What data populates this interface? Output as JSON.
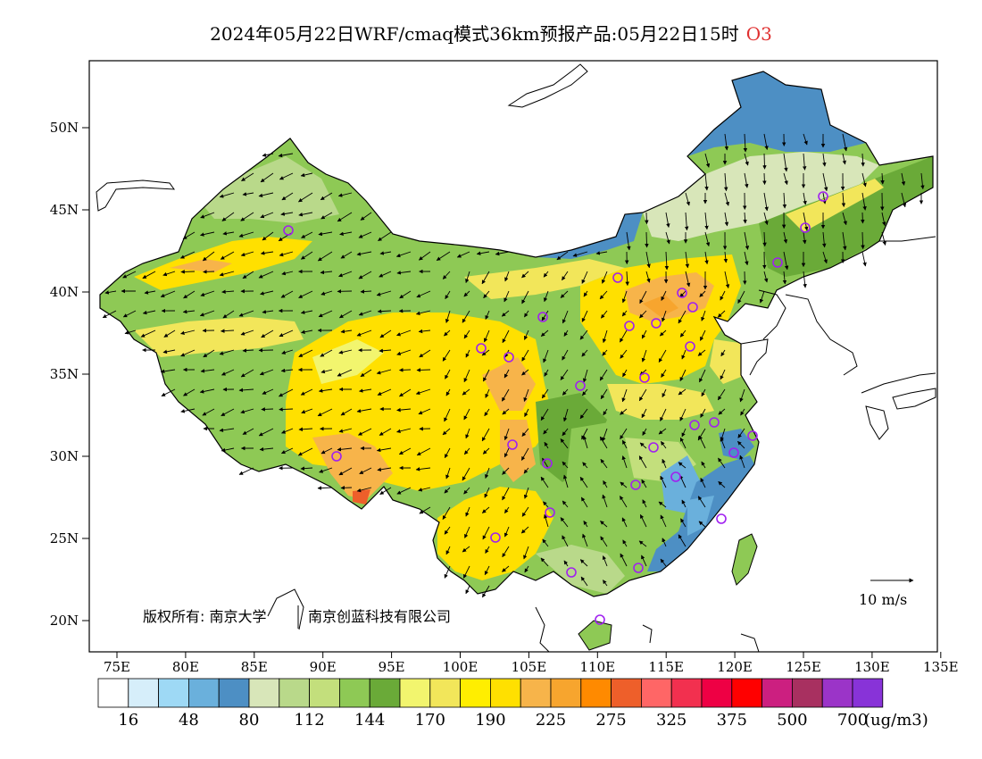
{
  "title": {
    "main": "2024年05月22日WRF/cmaq模式36km预报产品:05月22日15时",
    "species": "O3",
    "species_color": "#e03030"
  },
  "axes": {
    "lat_labels": [
      "50N",
      "45N",
      "40N",
      "35N",
      "30N",
      "25N",
      "20N"
    ],
    "lon_labels": [
      "75E",
      "80E",
      "85E",
      "90E",
      "95E",
      "100E",
      "105E",
      "110E",
      "115E",
      "120E",
      "125E",
      "130E",
      "135E"
    ]
  },
  "copyright": {
    "left": "版权所有: 南京大学",
    "right": "南京创蓝科技有限公司"
  },
  "wind_scale": {
    "label": "10 m/s"
  },
  "colorbar": {
    "colors": [
      "#ffffff",
      "#d6eefa",
      "#9ed9f5",
      "#6ab0dc",
      "#4d8fc4",
      "#d8e6b9",
      "#b9d98a",
      "#c3df7c",
      "#8ec955",
      "#6aaa38",
      "#f2f56e",
      "#f2e65a",
      "#ffee00",
      "#ffe000",
      "#f7b44a",
      "#f7a52e",
      "#ff8a00",
      "#ee5f2a",
      "#ff6666",
      "#f2304f",
      "#ee0044",
      "#ff0000",
      "#cc1f80",
      "#a83060",
      "#9b34c8",
      "#8833d8"
    ],
    "labels": [
      "16",
      "48",
      "80",
      "112",
      "144",
      "170",
      "190",
      "225",
      "275",
      "325",
      "375",
      "500",
      "700"
    ],
    "unit": "(ug/m3)"
  },
  "station_marker_color": "#a020f0"
}
